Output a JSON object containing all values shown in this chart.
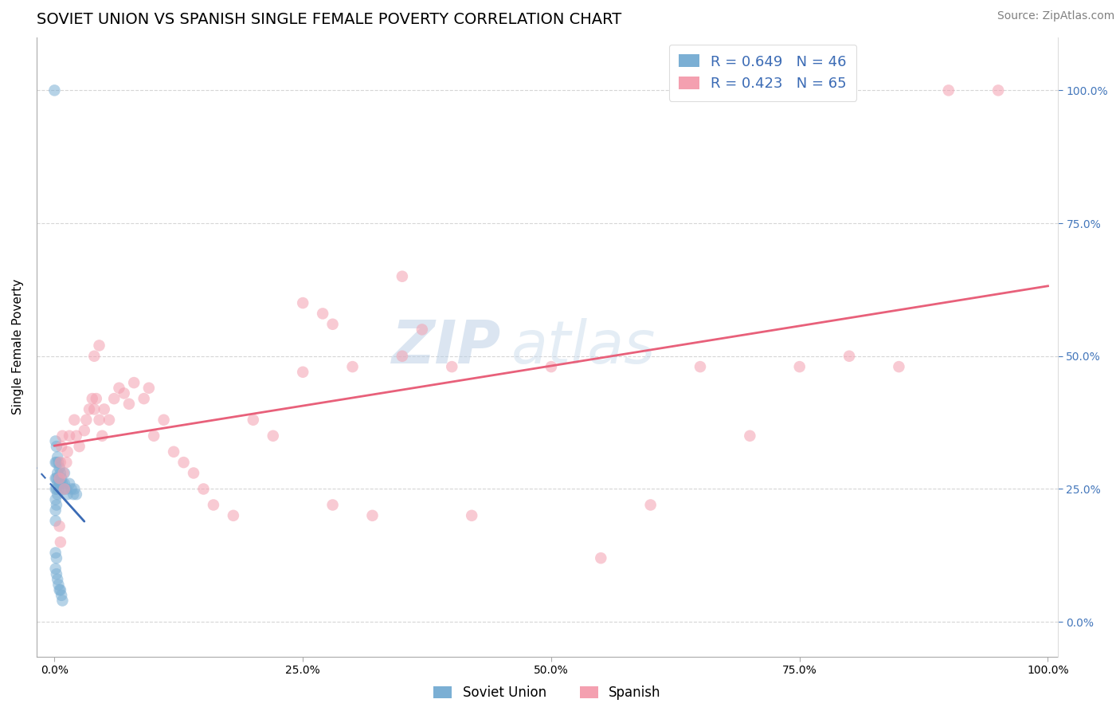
{
  "title": "SOVIET UNION VS SPANISH SINGLE FEMALE POVERTY CORRELATION CHART",
  "source": "Source: ZipAtlas.com",
  "ylabel": "Single Female Poverty",
  "watermark_zip": "ZIP",
  "watermark_atlas": "atlas",
  "legend_blue_r": "R = 0.649",
  "legend_blue_n": "N = 46",
  "legend_pink_r": "R = 0.423",
  "legend_pink_n": "N = 65",
  "legend_blue_label": "Soviet Union",
  "legend_pink_label": "Spanish",
  "blue_color": "#7BAFD4",
  "pink_color": "#F4A0B0",
  "blue_line_color": "#3B6BB5",
  "pink_line_color": "#E8607A",
  "legend_r_color": "#3B6BB5",
  "right_tick_color": "#4477BB",
  "grid_color": "#CCCCCC",
  "background_color": "#FFFFFF",
  "title_fontsize": 14,
  "axis_label_fontsize": 11,
  "tick_fontsize": 10,
  "source_fontsize": 10,
  "x_ticks": [
    0,
    0.25,
    0.5,
    0.75,
    1.0
  ],
  "x_tick_labels": [
    "0.0%",
    "25.0%",
    "50.0%",
    "75.0%",
    "100.0%"
  ],
  "y_ticks": [
    0,
    0.25,
    0.5,
    0.75,
    1.0
  ],
  "y_tick_labels": [
    "0.0%",
    "25.0%",
    "50.0%",
    "75.0%",
    "100.0%"
  ],
  "su_x": [
    0.0,
    0.001,
    0.001,
    0.001,
    0.001,
    0.001,
    0.001,
    0.001,
    0.002,
    0.002,
    0.002,
    0.002,
    0.002,
    0.003,
    0.003,
    0.003,
    0.003,
    0.004,
    0.004,
    0.004,
    0.005,
    0.005,
    0.006,
    0.006,
    0.007,
    0.008,
    0.009,
    0.01,
    0.01,
    0.012,
    0.013,
    0.015,
    0.017,
    0.019,
    0.02,
    0.022,
    0.001,
    0.001,
    0.002,
    0.002,
    0.003,
    0.004,
    0.005,
    0.006,
    0.007,
    0.008
  ],
  "su_y": [
    1.0,
    0.34,
    0.3,
    0.27,
    0.25,
    0.23,
    0.21,
    0.19,
    0.33,
    0.3,
    0.27,
    0.25,
    0.22,
    0.31,
    0.28,
    0.26,
    0.24,
    0.3,
    0.27,
    0.25,
    0.29,
    0.26,
    0.28,
    0.26,
    0.27,
    0.26,
    0.25,
    0.28,
    0.26,
    0.25,
    0.24,
    0.26,
    0.25,
    0.24,
    0.25,
    0.24,
    0.13,
    0.1,
    0.12,
    0.09,
    0.08,
    0.07,
    0.06,
    0.06,
    0.05,
    0.04
  ],
  "sp_x": [
    0.005,
    0.006,
    0.007,
    0.008,
    0.009,
    0.01,
    0.012,
    0.013,
    0.015,
    0.02,
    0.022,
    0.025,
    0.03,
    0.032,
    0.035,
    0.038,
    0.04,
    0.042,
    0.045,
    0.048,
    0.05,
    0.055,
    0.06,
    0.065,
    0.07,
    0.075,
    0.08,
    0.09,
    0.095,
    0.1,
    0.11,
    0.12,
    0.13,
    0.14,
    0.15,
    0.16,
    0.18,
    0.2,
    0.22,
    0.25,
    0.28,
    0.3,
    0.32,
    0.35,
    0.4,
    0.42,
    0.5,
    0.55,
    0.6,
    0.65,
    0.7,
    0.75,
    0.8,
    0.85,
    0.9,
    0.005,
    0.006,
    0.35,
    0.37,
    0.25,
    0.27,
    0.28,
    0.04,
    0.045,
    0.95
  ],
  "sp_y": [
    0.27,
    0.3,
    0.33,
    0.35,
    0.28,
    0.25,
    0.3,
    0.32,
    0.35,
    0.38,
    0.35,
    0.33,
    0.36,
    0.38,
    0.4,
    0.42,
    0.4,
    0.42,
    0.38,
    0.35,
    0.4,
    0.38,
    0.42,
    0.44,
    0.43,
    0.41,
    0.45,
    0.42,
    0.44,
    0.35,
    0.38,
    0.32,
    0.3,
    0.28,
    0.25,
    0.22,
    0.2,
    0.38,
    0.35,
    0.47,
    0.22,
    0.48,
    0.2,
    0.5,
    0.48,
    0.2,
    0.48,
    0.12,
    0.22,
    0.48,
    0.35,
    0.48,
    0.5,
    0.48,
    1.0,
    0.18,
    0.15,
    0.65,
    0.55,
    0.6,
    0.58,
    0.56,
    0.5,
    0.52,
    1.0
  ]
}
